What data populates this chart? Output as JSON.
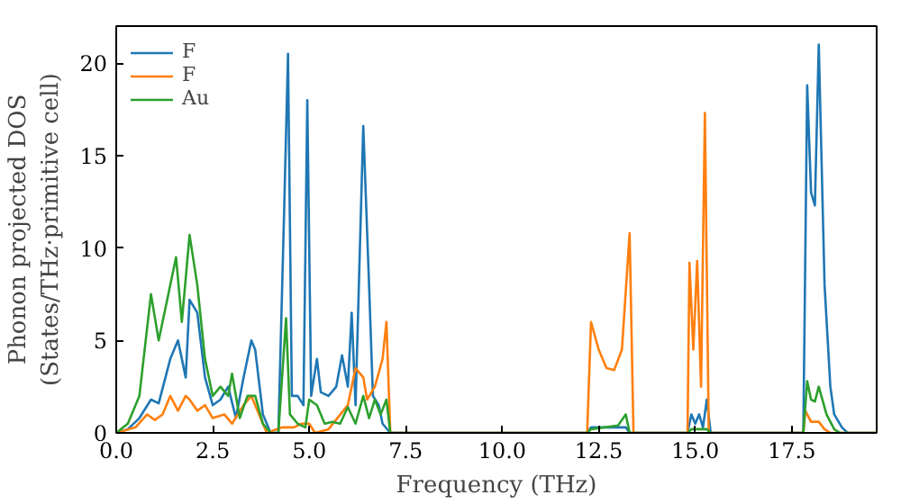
{
  "chart_data": {
    "type": "line",
    "xlabel": "Frequency (THz)",
    "ylabel": "Phonon projected DOS\n(States/THz·primitive cell)",
    "xlim": [
      0,
      19.7
    ],
    "ylim": [
      0,
      22
    ],
    "xticks": [
      {
        "value": 0,
        "label": "0.0"
      },
      2.5,
      {
        "value": 5,
        "label": "5.0"
      },
      7.5,
      {
        "value": 10,
        "label": "10.0"
      },
      12.5,
      {
        "value": 15,
        "label": "15.0"
      },
      17.5
    ],
    "yticks": [
      0,
      5,
      10,
      15,
      20
    ],
    "legend": "top left",
    "grid": false,
    "series": [
      {
        "name": "F",
        "color": "#1f77b4",
        "x": [
          0,
          0.3,
          0.6,
          0.9,
          1.1,
          1.4,
          1.6,
          1.8,
          1.9,
          2.1,
          2.3,
          2.5,
          2.7,
          2.9,
          3.1,
          3.3,
          3.5,
          3.6,
          3.8,
          4.0,
          4.2,
          4.35,
          4.45,
          4.55,
          4.7,
          4.85,
          4.95,
          5.05,
          5.2,
          5.3,
          5.5,
          5.7,
          5.85,
          6.0,
          6.1,
          6.2,
          6.4,
          6.55,
          6.65,
          6.8,
          6.9,
          7.1,
          12.2,
          12.3,
          13.2,
          13.3,
          14.8,
          14.9,
          15.0,
          15.1,
          15.2,
          15.3,
          15.4,
          17.8,
          17.9,
          18.0,
          18.1,
          18.2,
          18.35,
          18.5,
          18.6,
          18.8,
          18.95,
          19.7
        ],
        "values": [
          0,
          0.2,
          0.8,
          1.8,
          1.6,
          4,
          5,
          3,
          7.2,
          6.5,
          3,
          1.5,
          1.8,
          2.5,
          0.8,
          3,
          5,
          4.5,
          1,
          0,
          0,
          12,
          20.5,
          2,
          2,
          1.5,
          18,
          2,
          4,
          2.2,
          2,
          2.5,
          4.2,
          2.5,
          6.5,
          1.5,
          16.6,
          8,
          2,
          1.5,
          0.5,
          0,
          0,
          0.3,
          0.3,
          0,
          0,
          1,
          0.5,
          1,
          0.3,
          1.8,
          0,
          0,
          18.8,
          13,
          12.3,
          21,
          8,
          2.5,
          1,
          0.3,
          0,
          0
        ]
      },
      {
        "name": "F",
        "color": "#ff7f0e",
        "x": [
          0,
          0.5,
          0.8,
          1.0,
          1.2,
          1.4,
          1.6,
          1.8,
          1.9,
          2.1,
          2.3,
          2.5,
          2.8,
          3.0,
          3.3,
          3.5,
          3.7,
          3.9,
          4.3,
          4.6,
          4.8,
          5.0,
          5.15,
          5.5,
          6.0,
          6.2,
          6.4,
          6.5,
          6.7,
          6.9,
          7.0,
          7.1,
          12.2,
          12.3,
          12.5,
          12.7,
          12.9,
          13.1,
          13.3,
          13.4,
          14.8,
          14.85,
          14.95,
          15.05,
          15.15,
          15.25,
          15.35,
          17.8,
          17.85,
          18.0,
          18.2,
          18.35,
          18.5,
          19.7
        ],
        "values": [
          0,
          0.3,
          1,
          0.7,
          1,
          2,
          1.2,
          2,
          1.8,
          1.2,
          1.5,
          0.8,
          1,
          0.5,
          1.5,
          2,
          1,
          0,
          0.3,
          0.3,
          0.5,
          0.5,
          0,
          0.2,
          1.5,
          3.5,
          3,
          1.8,
          2.5,
          4,
          6,
          0,
          0,
          6,
          4.5,
          3.5,
          3.4,
          4.5,
          10.8,
          0,
          0,
          9.2,
          4.5,
          9.3,
          2.5,
          17.3,
          0,
          0,
          1.2,
          0.6,
          0.6,
          0.2,
          0,
          0
        ]
      },
      {
        "name": "Au",
        "color": "#2ca02c",
        "x": [
          0,
          0.3,
          0.6,
          0.9,
          1.1,
          1.3,
          1.55,
          1.7,
          1.9,
          2.1,
          2.3,
          2.5,
          2.7,
          2.9,
          3.0,
          3.2,
          3.4,
          3.6,
          3.8,
          4.0,
          4.2,
          4.4,
          4.5,
          4.7,
          4.9,
          5.0,
          5.2,
          5.4,
          5.6,
          5.8,
          6.0,
          6.2,
          6.4,
          6.55,
          6.7,
          6.85,
          7.0,
          7.1,
          12.2,
          12.3,
          13.0,
          13.2,
          13.3,
          14.8,
          14.9,
          15.3,
          15.4,
          17.8,
          17.9,
          18.0,
          18.1,
          18.2,
          18.4,
          18.6,
          18.75,
          19.7
        ],
        "values": [
          0,
          0.5,
          2,
          7.5,
          5,
          7,
          9.5,
          6,
          10.7,
          8,
          4,
          2,
          2.5,
          2,
          3.2,
          0.8,
          2,
          2,
          0.5,
          0,
          0,
          6.2,
          1,
          0.5,
          0.3,
          1.8,
          1.5,
          0.5,
          0.6,
          0.5,
          1.4,
          0.5,
          2,
          0.8,
          1.8,
          1,
          1.8,
          0,
          0,
          0.2,
          0.4,
          1,
          0,
          0,
          0.2,
          0.2,
          0,
          0,
          2.8,
          1.8,
          1.7,
          2.5,
          1,
          0.2,
          0,
          0
        ]
      }
    ]
  }
}
